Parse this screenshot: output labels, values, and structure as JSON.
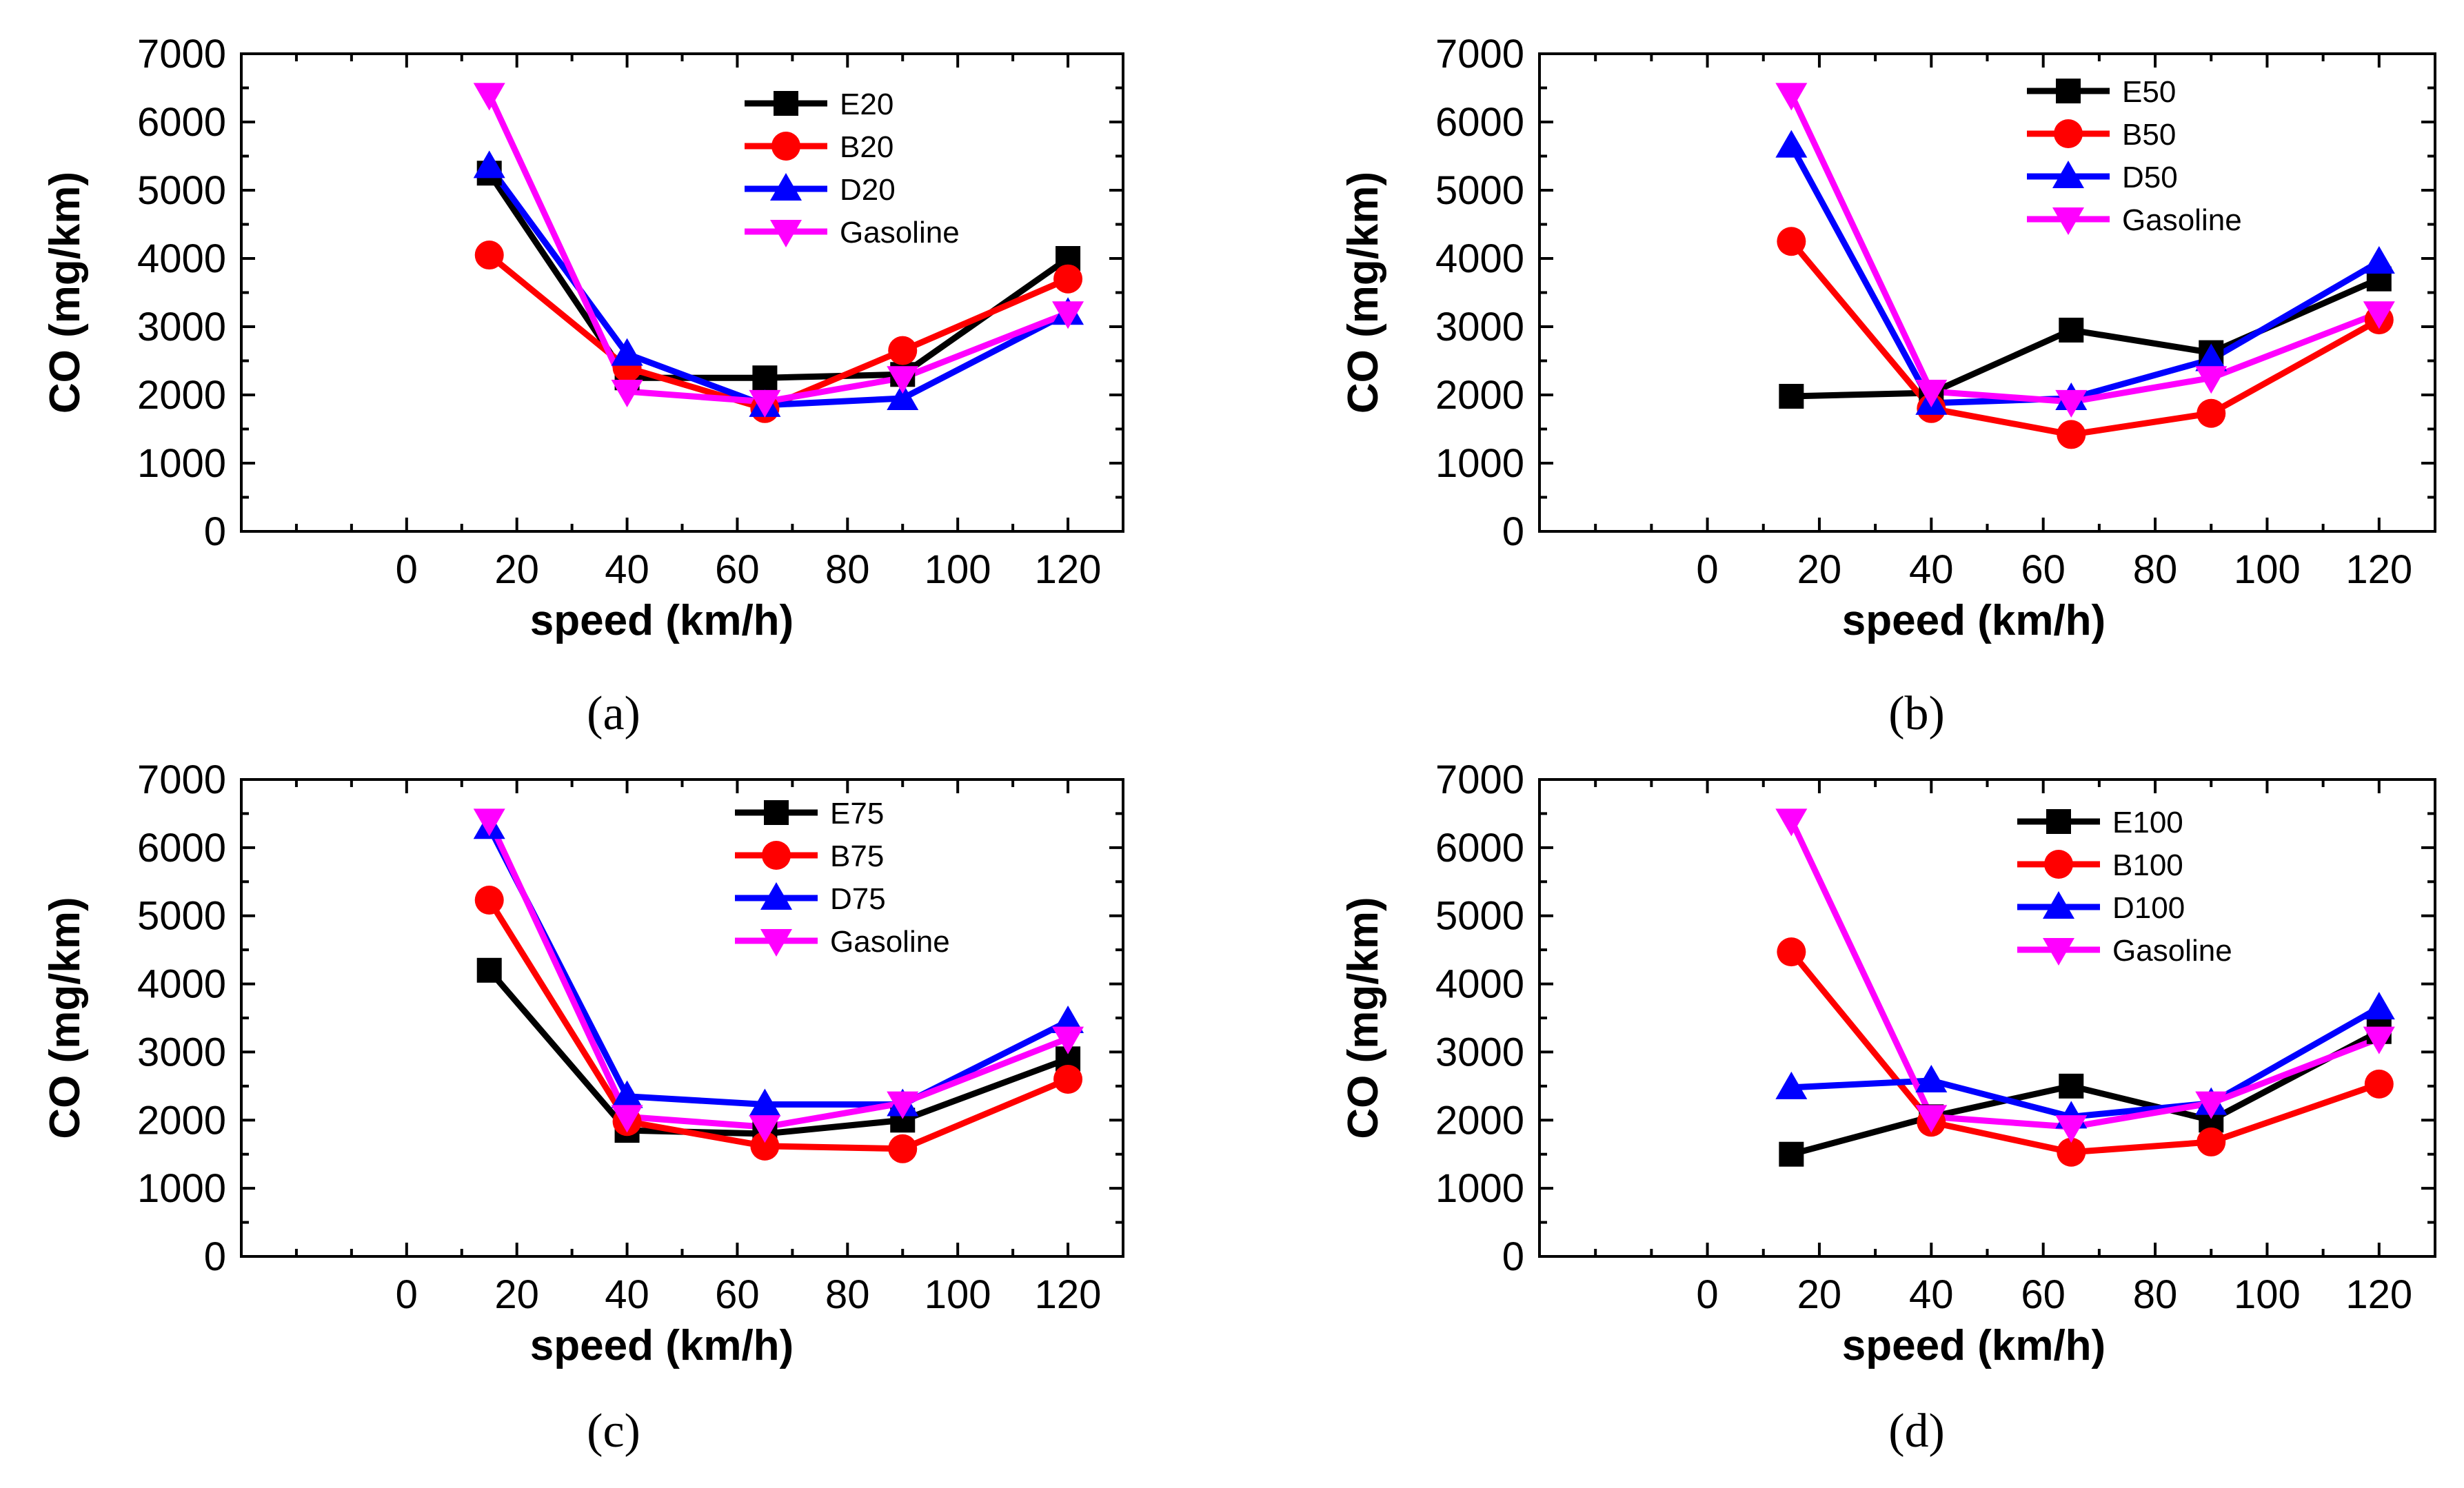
{
  "chart_data": [
    {
      "type": "line",
      "panel_label": "(a)",
      "xlabel": "speed (km/h)",
      "ylabel": "CO (mg/km)",
      "xlim": [
        -30,
        130
      ],
      "ylim": [
        0,
        7000
      ],
      "x_ticks": [
        0,
        20,
        40,
        60,
        80,
        100,
        120
      ],
      "y_ticks": [
        0,
        1000,
        2000,
        3000,
        4000,
        5000,
        6000,
        7000
      ],
      "x": [
        15,
        40,
        65,
        90,
        120
      ],
      "series": [
        {
          "name": "E20",
          "color": "#000000",
          "marker": "square",
          "values": [
            5250,
            2250,
            2250,
            2300,
            4000
          ]
        },
        {
          "name": "B20",
          "color": "#ff0000",
          "marker": "circle",
          "values": [
            4050,
            2400,
            1800,
            2650,
            3700
          ]
        },
        {
          "name": "D20",
          "color": "#0000ff",
          "marker": "triangle-up",
          "values": [
            5350,
            2600,
            1850,
            1950,
            3200
          ]
        },
        {
          "name": "Gasoline",
          "color": "#ff00ff",
          "marker": "triangle-down",
          "values": [
            6400,
            2050,
            1900,
            2250,
            3200
          ]
        }
      ]
    },
    {
      "type": "line",
      "panel_label": "(b)",
      "xlabel": "speed (km/h)",
      "ylabel": "CO (mg/km)",
      "xlim": [
        -30,
        130
      ],
      "ylim": [
        0,
        7000
      ],
      "x_ticks": [
        0,
        20,
        40,
        60,
        80,
        100,
        120
      ],
      "y_ticks": [
        0,
        1000,
        2000,
        3000,
        4000,
        5000,
        6000,
        7000
      ],
      "x": [
        15,
        40,
        65,
        90,
        120
      ],
      "series": [
        {
          "name": "E50",
          "color": "#000000",
          "marker": "square",
          "values": [
            1980,
            2030,
            2950,
            2620,
            3700
          ]
        },
        {
          "name": "B50",
          "color": "#ff0000",
          "marker": "circle",
          "values": [
            4250,
            1800,
            1420,
            1730,
            3100
          ]
        },
        {
          "name": "D50",
          "color": "#0000ff",
          "marker": "triangle-up",
          "values": [
            5650,
            1880,
            1950,
            2520,
            3950
          ]
        },
        {
          "name": "Gasoline",
          "color": "#ff00ff",
          "marker": "triangle-down",
          "values": [
            6400,
            2050,
            1900,
            2250,
            3200
          ]
        }
      ]
    },
    {
      "type": "line",
      "panel_label": "(c)",
      "xlabel": "speed (km/h)",
      "ylabel": "CO (mg/km)",
      "xlim": [
        -30,
        130
      ],
      "ylim": [
        0,
        7000
      ],
      "x_ticks": [
        0,
        20,
        40,
        60,
        80,
        100,
        120
      ],
      "y_ticks": [
        0,
        1000,
        2000,
        3000,
        4000,
        5000,
        6000,
        7000
      ],
      "x": [
        15,
        40,
        65,
        90,
        120
      ],
      "series": [
        {
          "name": "E75",
          "color": "#000000",
          "marker": "square",
          "values": [
            4200,
            1850,
            1800,
            2000,
            2900
          ]
        },
        {
          "name": "B75",
          "color": "#ff0000",
          "marker": "circle",
          "values": [
            5230,
            1980,
            1620,
            1580,
            2600
          ]
        },
        {
          "name": "D75",
          "color": "#0000ff",
          "marker": "triangle-up",
          "values": [
            6300,
            2350,
            2230,
            2230,
            3450
          ]
        },
        {
          "name": "Gasoline",
          "color": "#ff00ff",
          "marker": "triangle-down",
          "values": [
            6400,
            2050,
            1900,
            2250,
            3200
          ]
        }
      ]
    },
    {
      "type": "line",
      "panel_label": "(d)",
      "xlabel": "speed (km/h)",
      "ylabel": "CO (mg/km)",
      "xlim": [
        -30,
        130
      ],
      "ylim": [
        0,
        7000
      ],
      "x_ticks": [
        0,
        20,
        40,
        60,
        80,
        100,
        120
      ],
      "y_ticks": [
        0,
        1000,
        2000,
        3000,
        4000,
        5000,
        6000,
        7000
      ],
      "x": [
        15,
        40,
        65,
        90,
        120
      ],
      "series": [
        {
          "name": "E100",
          "color": "#000000",
          "marker": "square",
          "values": [
            1500,
            2050,
            2500,
            2000,
            3300
          ]
        },
        {
          "name": "B100",
          "color": "#ff0000",
          "marker": "circle",
          "values": [
            4470,
            1970,
            1530,
            1680,
            2530
          ]
        },
        {
          "name": "D100",
          "color": "#0000ff",
          "marker": "triangle-up",
          "values": [
            2480,
            2580,
            2050,
            2250,
            3650
          ]
        },
        {
          "name": "Gasoline",
          "color": "#ff00ff",
          "marker": "triangle-down",
          "values": [
            6400,
            2050,
            1900,
            2250,
            3200
          ]
        }
      ]
    }
  ]
}
